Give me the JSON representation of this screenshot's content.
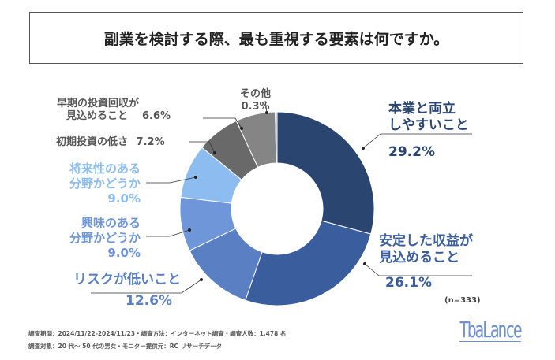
{
  "title": "副業を検討する際、最も重視する要素は何ですか。",
  "sample_note": "(n=333)",
  "footer": {
    "line1": "調査期間：2024/11/22-2024/11/23・調査方法：インターネット調査・調査人数：1,478 名",
    "line2": "調査対象：20 代～ 50 代の男女・モニター提供元：RC リサーチデータ"
  },
  "logo": "TbaLance",
  "chart_data": {
    "type": "pie",
    "donut": true,
    "slices": [
      {
        "label": "本業と両立しやすいこと",
        "label_lines": [
          "本業と両立",
          "しやすいこと"
        ],
        "value": 29.2,
        "value_text": "29.2%",
        "color": "#2b4571"
      },
      {
        "label": "安定した収益が見込めること",
        "label_lines": [
          "安定した収益が",
          "見込めること"
        ],
        "value": 26.1,
        "value_text": "26.1%",
        "color": "#3a5d9e"
      },
      {
        "label": "リスクが低いこと",
        "label_lines": [
          "リスクが低いこと"
        ],
        "value": 12.6,
        "value_text": "12.6%",
        "color": "#5a7fc2"
      },
      {
        "label": "興味のある分野かどうか",
        "label_lines": [
          "興味のある",
          "分野かどうか"
        ],
        "value": 9.0,
        "value_text": "9.0%",
        "color": "#6e96d8"
      },
      {
        "label": "将来性のある分野かどうか",
        "label_lines": [
          "将来性のある",
          "分野かどうか"
        ],
        "value": 9.0,
        "value_text": "9.0%",
        "color": "#8dbcf1"
      },
      {
        "label": "初期投資の低さ",
        "label_lines": [
          "初期投資の低さ"
        ],
        "value": 7.2,
        "value_text": "7.2%",
        "color": "#696969"
      },
      {
        "label": "早期の投資回収が見込めること",
        "label_lines": [
          "早期の投資回収が",
          "見込めること"
        ],
        "value": 6.6,
        "value_text": "6.6%",
        "color": "#858585"
      },
      {
        "label": "その他",
        "label_lines": [
          "その他"
        ],
        "value": 0.3,
        "value_text": "0.3%",
        "color": "#a5a5a5"
      }
    ]
  }
}
